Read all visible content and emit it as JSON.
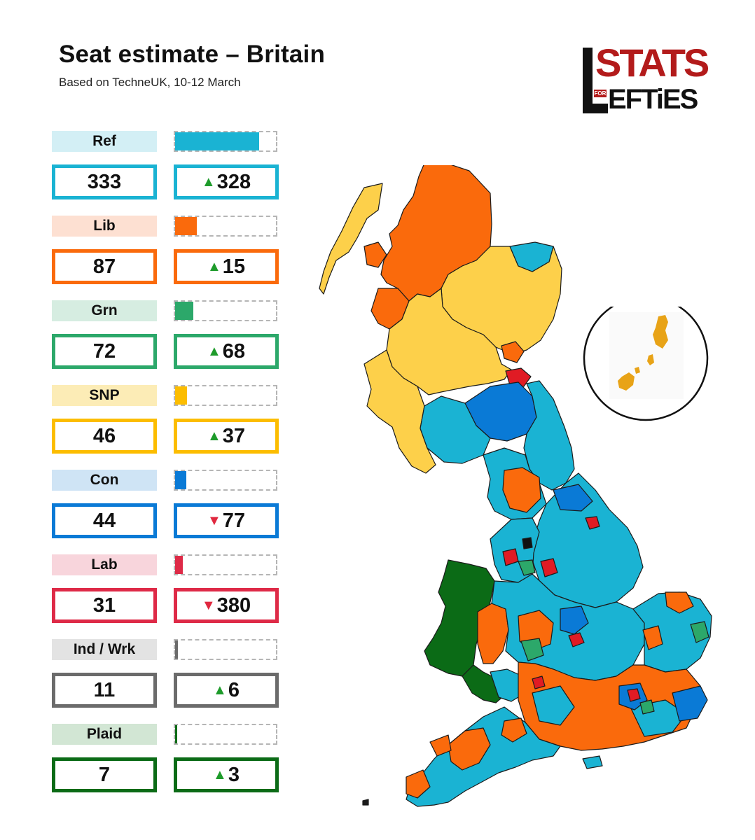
{
  "header": {
    "title": "Seat estimate – Britain",
    "subtitle": "Based on TechneUK, 10-12 March"
  },
  "logo": {
    "stats_text": "STATS",
    "for_text": "FOR",
    "efties_text": "EFTiES",
    "colors": {
      "red": "#b31b1b",
      "black": "#111111"
    }
  },
  "bar_scale_max_seats": 650,
  "parties": [
    {
      "label": "Ref",
      "seats": "333",
      "seats_num": 333,
      "change": "328",
      "direction": "up",
      "color": "#1ab3d3",
      "bg": "#d3eff5"
    },
    {
      "label": "Lib",
      "seats": "87",
      "seats_num": 87,
      "change": "15",
      "direction": "up",
      "color": "#fa6a0c",
      "bg": "#fde0d2"
    },
    {
      "label": "Grn",
      "seats": "72",
      "seats_num": 72,
      "change": "68",
      "direction": "up",
      "color": "#2ca86a",
      "bg": "#d6ede1"
    },
    {
      "label": "SNP",
      "seats": "46",
      "seats_num": 46,
      "change": "37",
      "direction": "up",
      "color": "#fcbd00",
      "bg": "#fcecb6"
    },
    {
      "label": "Con",
      "seats": "44",
      "seats_num": 44,
      "change": "77",
      "direction": "down",
      "color": "#0a7ad6",
      "bg": "#cfe4f5"
    },
    {
      "label": "Lab",
      "seats": "31",
      "seats_num": 31,
      "change": "380",
      "direction": "down",
      "color": "#de2a47",
      "bg": "#f8d5dc"
    },
    {
      "label": "Ind / Wrk",
      "seats": "11",
      "seats_num": 11,
      "change": "6",
      "direction": "up",
      "color": "#6b6b6b",
      "bg": "#e3e3e3"
    },
    {
      "label": "Plaid",
      "seats": "7",
      "seats_num": 7,
      "change": "3",
      "direction": "up",
      "color": "#0b6b16",
      "bg": "#d2e6d4"
    }
  ],
  "arrows": {
    "up": "▲",
    "down": "▼"
  },
  "map": {
    "colors": {
      "ref": "#1ab3d3",
      "lib": "#fa6a0c",
      "grn": "#2ca86a",
      "snp": "#fdd04a",
      "con": "#0a7ad6",
      "lab": "#e01b24",
      "plaid": "#0b6b16",
      "ind": "#111111",
      "shetland": "#e8a317"
    }
  }
}
